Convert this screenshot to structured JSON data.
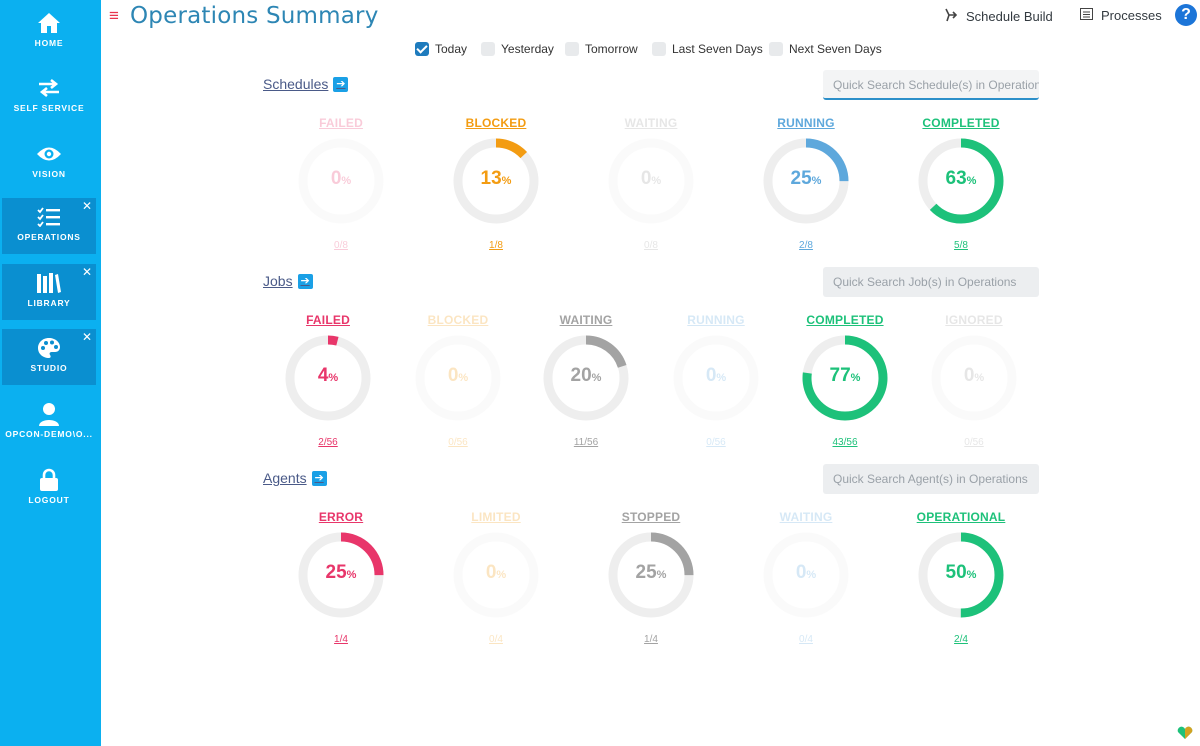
{
  "nav": [
    {
      "id": "home",
      "label": "HOME",
      "icon": "home-icon",
      "active": false,
      "closable": false
    },
    {
      "id": "self-service",
      "label": "SELF SERVICE",
      "icon": "arrows-swap-icon",
      "active": false,
      "closable": false
    },
    {
      "id": "vision",
      "label": "VISION",
      "icon": "eye-icon",
      "active": false,
      "closable": false
    },
    {
      "id": "operations",
      "label": "OPERATIONS",
      "icon": "checklist-icon",
      "active": true,
      "closable": true
    },
    {
      "id": "library",
      "label": "LIBRARY",
      "icon": "books-icon",
      "active": true,
      "closable": true
    },
    {
      "id": "studio",
      "label": "STUDIO",
      "icon": "palette-icon",
      "active": true,
      "closable": true
    },
    {
      "id": "user",
      "label": "OPCON-DEMO\\O...",
      "icon": "user-icon",
      "active": false,
      "closable": false
    },
    {
      "id": "logout",
      "label": "LOGOUT",
      "icon": "lock-icon",
      "active": false,
      "closable": false
    }
  ],
  "header": {
    "title": "Operations Summary",
    "schedule_build": "Schedule Build",
    "processes": "Processes",
    "help": "?"
  },
  "filters": [
    {
      "label": "Today",
      "checked": true
    },
    {
      "label": "Yesterday",
      "checked": false
    },
    {
      "label": "Tomorrow",
      "checked": false
    },
    {
      "label": "Last Seven Days",
      "checked": false
    },
    {
      "label": "Next Seven Days",
      "checked": false
    }
  ],
  "sections": [
    {
      "title": "Schedules",
      "search_placeholder": "Quick Search Schedule(s) in Operations",
      "search_focused": true,
      "stats": [
        {
          "label": "FAILED",
          "percent": 0,
          "count": "0/8",
          "color": "#e8366a",
          "active": false
        },
        {
          "label": "BLOCKED",
          "percent": 13,
          "count": "1/8",
          "color": "#f39c12",
          "active": true
        },
        {
          "label": "WAITING",
          "percent": 0,
          "count": "0/8",
          "color": "#9e9e9e",
          "active": false
        },
        {
          "label": "RUNNING",
          "percent": 25,
          "count": "2/8",
          "color": "#5ea8dc",
          "active": true
        },
        {
          "label": "COMPLETED",
          "percent": 63,
          "count": "5/8",
          "color": "#1dc17a",
          "active": true
        }
      ]
    },
    {
      "title": "Jobs",
      "search_placeholder": "Quick Search Job(s) in Operations",
      "search_focused": false,
      "stats": [
        {
          "label": "FAILED",
          "percent": 4,
          "count": "2/56",
          "color": "#e8366a",
          "active": true
        },
        {
          "label": "BLOCKED",
          "percent": 0,
          "count": "0/56",
          "color": "#f39c12",
          "active": false
        },
        {
          "label": "WAITING",
          "percent": 20,
          "count": "11/56",
          "color": "#a3a3a3",
          "active": true
        },
        {
          "label": "RUNNING",
          "percent": 0,
          "count": "0/56",
          "color": "#5ea8dc",
          "active": false
        },
        {
          "label": "COMPLETED",
          "percent": 77,
          "count": "43/56",
          "color": "#1dc17a",
          "active": true
        },
        {
          "label": "IGNORED",
          "percent": 0,
          "count": "0/56",
          "color": "#9e9e9e",
          "active": false
        }
      ]
    },
    {
      "title": "Agents",
      "search_placeholder": "Quick Search Agent(s) in Operations",
      "search_focused": false,
      "stats": [
        {
          "label": "ERROR",
          "percent": 25,
          "count": "1/4",
          "color": "#e8366a",
          "active": true
        },
        {
          "label": "LIMITED",
          "percent": 0,
          "count": "0/4",
          "color": "#f39c12",
          "active": false
        },
        {
          "label": "STOPPED",
          "percent": 25,
          "count": "1/4",
          "color": "#a3a3a3",
          "active": true
        },
        {
          "label": "WAITING",
          "percent": 0,
          "count": "0/4",
          "color": "#5ea8dc",
          "active": false
        },
        {
          "label": "OPERATIONAL",
          "percent": 50,
          "count": "2/4",
          "color": "#1dc17a",
          "active": true
        }
      ]
    }
  ]
}
